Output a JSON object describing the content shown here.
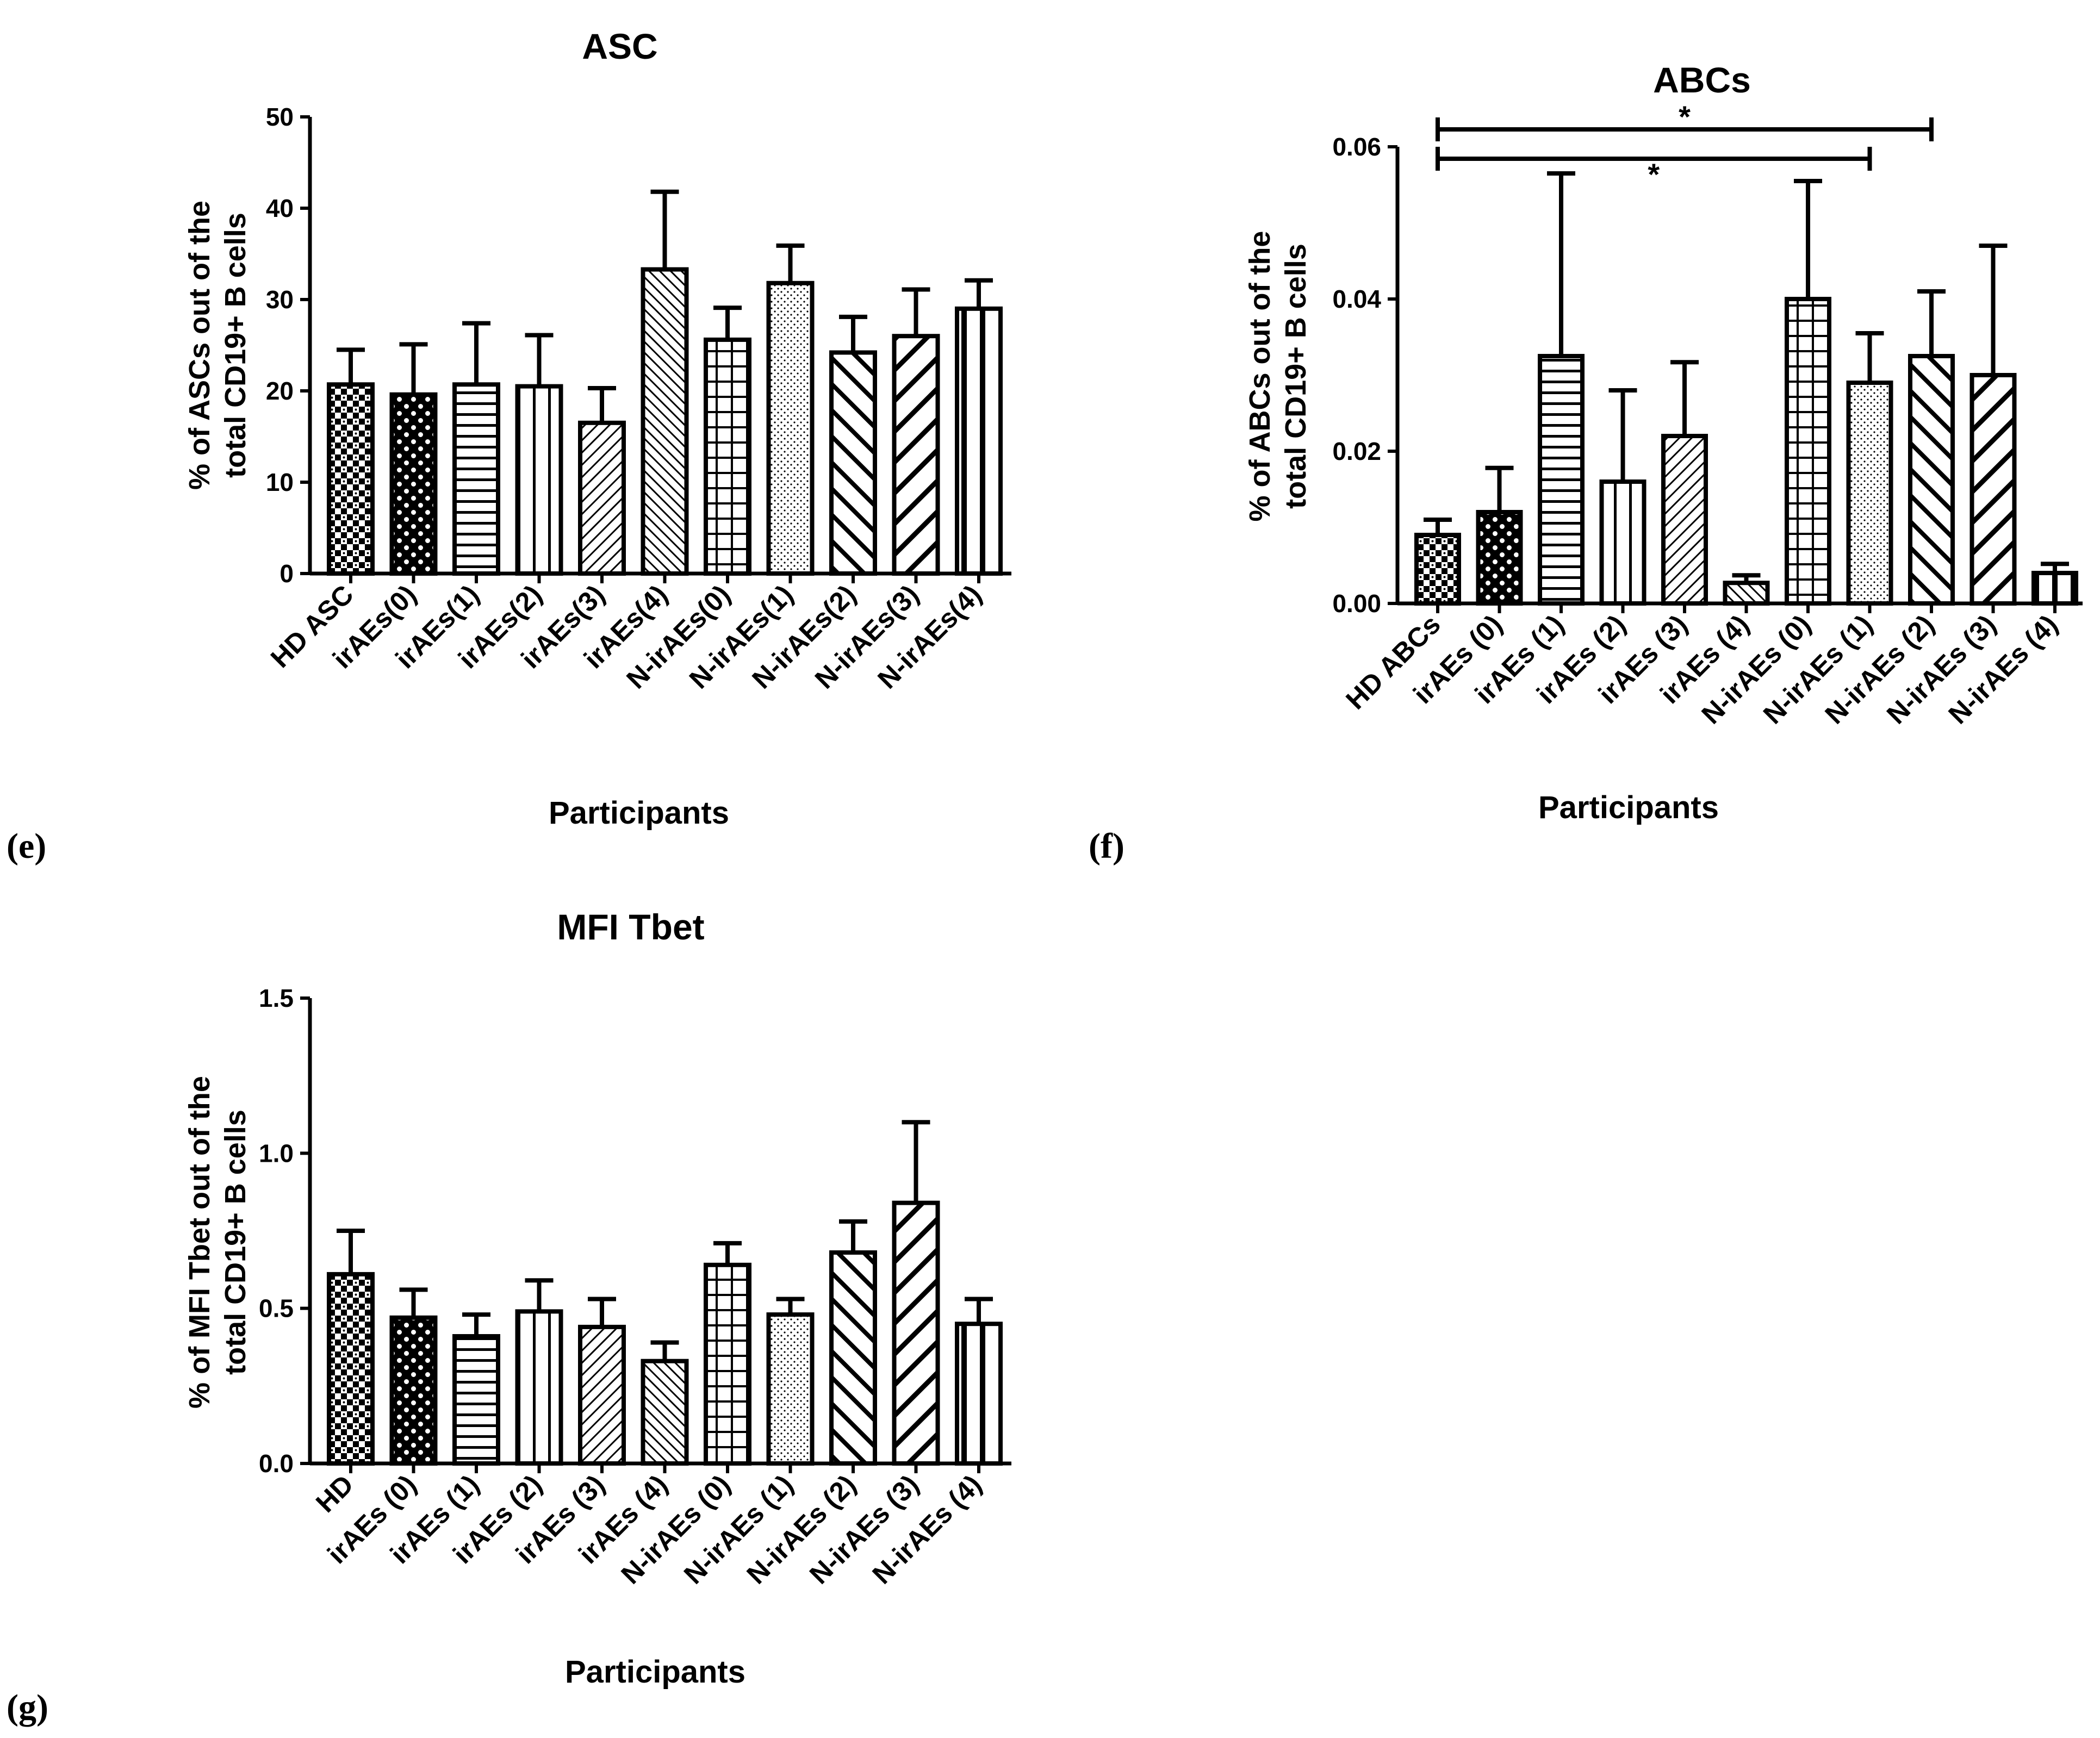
{
  "chart_data": [
    {
      "panel": "(e)",
      "type": "bar",
      "title": "ASC",
      "ylabel": [
        "% of ASCs out of the",
        "total CD19+ B cells"
      ],
      "xlabel": "Participants",
      "ylim": [
        0,
        50
      ],
      "yticks": [
        "0",
        "10",
        "20",
        "30",
        "40",
        "50"
      ],
      "categories": [
        "HD ASC",
        "irAEs(0)",
        "irAEs(1)",
        "irAEs(2)",
        "irAEs(3)",
        "irAEs(4)",
        "N-irAEs(0)",
        "N-irAEs(1)",
        "N-irAEs(2)",
        "N-irAEs(3)",
        "N-irAEs(4)"
      ],
      "values": [
        20.7,
        19.6,
        20.7,
        20.5,
        16.5,
        33.3,
        25.6,
        31.8,
        24.2,
        26.0,
        29.0
      ],
      "errors": [
        24.5,
        25.1,
        27.4,
        26.1,
        20.3,
        41.8,
        29.1,
        35.9,
        28.1,
        31.1,
        32.1
      ],
      "significance": []
    },
    {
      "panel": "(f)",
      "type": "bar",
      "title": "ABCs",
      "ylabel": [
        "% of ABCs out of the",
        "total CD19+ B cells"
      ],
      "xlabel": "Participants",
      "ylim": [
        0,
        0.06
      ],
      "yticks": [
        "0.00",
        "0.02",
        "0.04",
        "0.06"
      ],
      "categories": [
        "HD ABCs",
        "irAEs (0)",
        "irAEs (1)",
        "irAEs (2)",
        "irAEs (3)",
        "irAEs (4)",
        "N-irAEs (0)",
        "N-irAEs (1)",
        "N-irAEs (2)",
        "N-irAEs (3)",
        "N-irAEs (4)"
      ],
      "values": [
        0.009,
        0.012,
        0.0325,
        0.016,
        0.022,
        0.0027,
        0.04,
        0.029,
        0.0325,
        0.03,
        0.004
      ],
      "errors": [
        0.011,
        0.0178,
        0.0565,
        0.028,
        0.0317,
        0.0037,
        0.0555,
        0.0355,
        0.041,
        0.047,
        0.0052
      ],
      "significance": [
        {
          "from": 0,
          "to": 8,
          "label": "*"
        },
        {
          "from": 0,
          "to": 7,
          "label": "*"
        }
      ]
    },
    {
      "panel": "(g)",
      "type": "bar",
      "title": "MFI Tbet",
      "ylabel": [
        "% of MFI Tbet out of the",
        "total CD19+ B cells"
      ],
      "xlabel": "Participants",
      "ylim": [
        0,
        1.5
      ],
      "yticks": [
        "0.0",
        "0.5",
        "1.0",
        "1.5"
      ],
      "categories": [
        "HD",
        "irAEs (0)",
        "irAEs (1)",
        "irAEs (2)",
        "irAEs (3)",
        "irAEs (4)",
        "N-irAEs (0)",
        "N-irAEs (1)",
        "N-irAEs (2)",
        "N-irAEs (3)",
        "N-irAEs (4)"
      ],
      "values": [
        0.61,
        0.47,
        0.41,
        0.49,
        0.44,
        0.33,
        0.64,
        0.48,
        0.68,
        0.84,
        0.45
      ],
      "errors": [
        0.75,
        0.56,
        0.48,
        0.59,
        0.53,
        0.39,
        0.71,
        0.53,
        0.78,
        1.1,
        0.53
      ],
      "significance": []
    }
  ]
}
